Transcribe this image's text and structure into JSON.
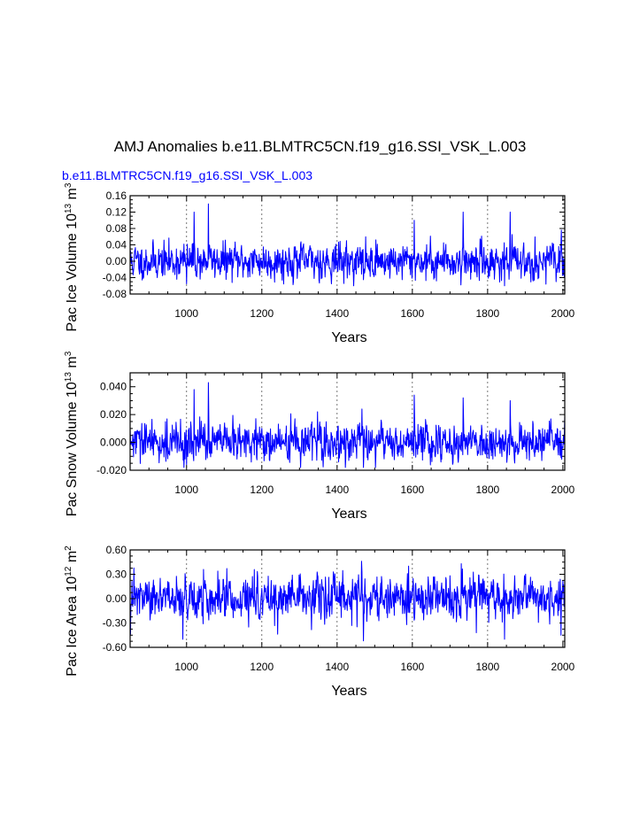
{
  "figure": {
    "title": "AMJ Anomalies b.e11.BLMTRC5CN.f19_g16.SSI_VSK_L.003",
    "subtitle": "b.e11.BLMTRC5CN.f19_g16.SSI_VSK_L.003",
    "line_color": "#0000ff",
    "axis_color": "#000000",
    "grid_color": "#555555"
  },
  "chart_data": [
    {
      "type": "line",
      "name": "pac-ice-volume",
      "ylabel": "Pac Ice Volume 10",
      "ylabel_exp1": "13",
      "ylabel_unit": " m",
      "ylabel_exp2": "3",
      "xlabel": "Years",
      "xlim": [
        850,
        2005
      ],
      "ylim": [
        -0.08,
        0.16
      ],
      "yticks": [
        -0.08,
        -0.04,
        0.0,
        0.04,
        0.08,
        0.12,
        0.16
      ],
      "ytick_labels": [
        "-0.08",
        "-0.04",
        "0.00",
        "0.04",
        "0.08",
        "0.12",
        "0.16"
      ],
      "xticks": [
        1000,
        1200,
        1400,
        1600,
        1800,
        2000
      ],
      "xtick_labels": [
        "1000",
        "1200",
        "1400",
        "1600",
        "1800",
        "2000"
      ],
      "grid_x": [
        1000,
        1200,
        1400,
        1600,
        1800
      ],
      "series": [
        {
          "name": "AMJ anomaly",
          "x_start": 850,
          "x_end": 2005,
          "std": 0.022,
          "min": -0.06,
          "max": 0.14,
          "seed": 11,
          "spikes": [
            [
              1058,
              0.14
            ],
            [
              1020,
              0.12
            ],
            [
              1735,
              0.12
            ],
            [
              1860,
              0.12
            ],
            [
              1605,
              0.1
            ],
            [
              1470,
              -0.045
            ],
            [
              1845,
              -0.06
            ],
            [
              1000,
              -0.055
            ]
          ]
        }
      ]
    },
    {
      "type": "line",
      "name": "pac-snow-volume",
      "ylabel": "Pac Snow Volume 10",
      "ylabel_exp1": "13",
      "ylabel_unit": " m",
      "ylabel_exp2": "3",
      "xlabel": "Years",
      "xlim": [
        850,
        2005
      ],
      "ylim": [
        -0.02,
        0.05
      ],
      "yticks": [
        -0.02,
        0.0,
        0.02,
        0.04
      ],
      "ytick_labels": [
        "-0.020",
        "0.000",
        "0.020",
        "0.040"
      ],
      "xticks": [
        1000,
        1200,
        1400,
        1600,
        1800,
        2000
      ],
      "xtick_labels": [
        "1000",
        "1200",
        "1400",
        "1600",
        "1800",
        "2000"
      ],
      "grid_x": [
        1000,
        1200,
        1400,
        1600,
        1800
      ],
      "series": [
        {
          "name": "AMJ anomaly",
          "x_start": 850,
          "x_end": 2005,
          "std": 0.007,
          "min": -0.018,
          "max": 0.043,
          "seed": 29,
          "spikes": [
            [
              1058,
              0.043
            ],
            [
              1020,
              0.038
            ],
            [
              1605,
              0.034
            ],
            [
              1735,
              0.032
            ],
            [
              1860,
              0.03
            ],
            [
              1470,
              -0.018
            ],
            [
              1000,
              -0.016
            ]
          ]
        }
      ]
    },
    {
      "type": "line",
      "name": "pac-ice-area",
      "ylabel": "Pac Ice Area 10",
      "ylabel_exp1": "12",
      "ylabel_unit": " m",
      "ylabel_exp2": "2",
      "xlabel": "Years",
      "xlim": [
        850,
        2005
      ],
      "ylim": [
        -0.6,
        0.6
      ],
      "yticks": [
        -0.6,
        -0.3,
        0.0,
        0.3,
        0.6
      ],
      "ytick_labels": [
        "-0.60",
        "-0.30",
        "0.00",
        "0.30",
        "0.60"
      ],
      "xticks": [
        1000,
        1200,
        1400,
        1600,
        1800,
        2000
      ],
      "xtick_labels": [
        "1000",
        "1200",
        "1400",
        "1600",
        "1800",
        "2000"
      ],
      "grid_x": [
        1000,
        1200,
        1400,
        1600,
        1800
      ],
      "series": [
        {
          "name": "AMJ anomaly",
          "x_start": 850,
          "x_end": 2005,
          "std": 0.13,
          "min": -0.52,
          "max": 0.46,
          "seed": 47,
          "spikes": [
            [
              1470,
              -0.52
            ],
            [
              1845,
              -0.5
            ],
            [
              990,
              -0.5
            ],
            [
              1995,
              -0.45
            ],
            [
              1465,
              0.46
            ],
            [
              1730,
              0.43
            ],
            [
              1590,
              0.4
            ],
            [
              1045,
              0.36
            ]
          ]
        }
      ]
    }
  ]
}
